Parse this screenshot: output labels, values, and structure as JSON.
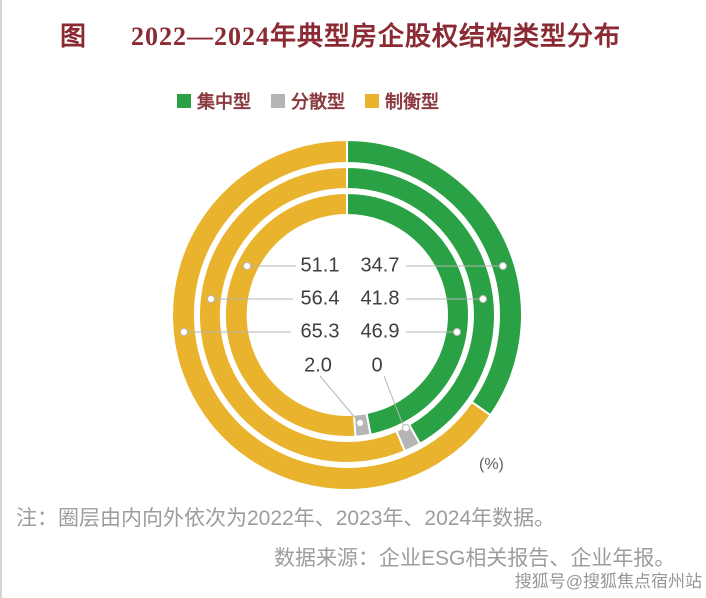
{
  "header": {
    "prefix": "图",
    "title": "2022—2024年典型房企股权结构类型分布"
  },
  "chart_data": {
    "type": "pie",
    "variant": "concentric-donut",
    "title": "2022—2024年典型房企股权结构类型分布",
    "categories": [
      "集中型",
      "分散型",
      "制衡型"
    ],
    "colors": [
      "#2aa144",
      "#b5b5b5",
      "#e9b32d"
    ],
    "unit_label": "(%)",
    "rings": [
      {
        "year": "2022年",
        "position": "inner",
        "values": [
          46.9,
          2.0,
          51.1
        ]
      },
      {
        "year": "2023年",
        "position": "middle",
        "values": [
          41.8,
          1.8,
          56.4
        ]
      },
      {
        "year": "2024年",
        "position": "outer",
        "values": [
          34.7,
          0,
          65.3
        ]
      }
    ],
    "center_labels": {
      "left": [
        "51.1",
        "56.4",
        "65.3",
        "2.0"
      ],
      "right": [
        "34.7",
        "41.8",
        "46.9",
        "0"
      ]
    },
    "legend_position": "top"
  },
  "footer": {
    "note": "注：圈层由内向外依次为2022年、2023年、2024年数据。",
    "source": "数据来源：企业ESG相关报告、企业年报。",
    "watermark": "搜狐号@搜狐焦点宿州站"
  }
}
